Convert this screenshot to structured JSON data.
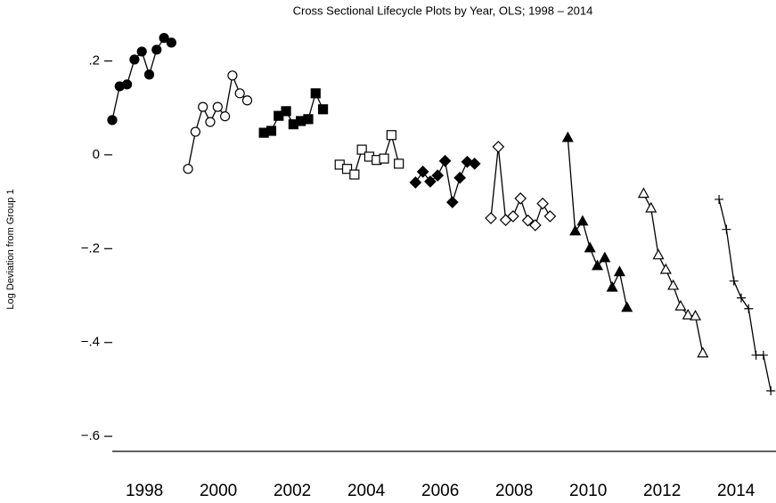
{
  "chart_data": {
    "type": "line",
    "title": "Cross Sectional Lifecycle Plots by Year, OLS; 1998 – 2014",
    "y_label": "Log Deviation from Group 1",
    "xlim": [
      1997.13,
      2015.08
    ],
    "ylim": [
      -0.632,
      0.254
    ],
    "xticks": [
      1998,
      2000,
      2002,
      2004,
      2006,
      2008,
      2010,
      2012,
      2014
    ],
    "yticks": [
      {
        "value": 0.2,
        "label": ".2"
      },
      0,
      {
        "value": -0.2,
        "label": "−.2"
      },
      {
        "value": -0.4,
        "label": "−.4"
      },
      {
        "value": -0.6,
        "label": "−.6"
      }
    ],
    "series": [
      {
        "color": "#000000",
        "marker": "circle",
        "filled": true,
        "x": [
          1997.13,
          1997.33,
          1997.53,
          1997.73,
          1997.93,
          1998.13,
          1998.33,
          1998.53,
          1998.73
        ],
        "values": [
          0.074,
          0.146,
          0.15,
          0.203,
          0.22,
          0.171,
          0.224,
          0.249,
          0.239
        ]
      },
      {
        "color": "#000000",
        "marker": "circle",
        "filled": false,
        "x": [
          1999.18,
          1999.38,
          1999.58,
          1999.78,
          1999.98,
          2000.18,
          2000.38,
          2000.58,
          2000.78
        ],
        "values": [
          -0.03,
          0.049,
          0.102,
          0.07,
          0.102,
          0.082,
          0.169,
          0.131,
          0.116
        ]
      },
      {
        "color": "#000000",
        "marker": "square",
        "filled": true,
        "x": [
          2001.23,
          2001.43,
          2001.63,
          2001.83,
          2002.03,
          2002.23,
          2002.43,
          2002.63,
          2002.83
        ],
        "values": [
          0.047,
          0.051,
          0.083,
          0.093,
          0.065,
          0.072,
          0.076,
          0.131,
          0.097
        ]
      },
      {
        "color": "#000000",
        "marker": "square",
        "filled": false,
        "x": [
          2003.28,
          2003.48,
          2003.68,
          2003.88,
          2004.08,
          2004.28,
          2004.48,
          2004.68,
          2004.88
        ],
        "values": [
          -0.021,
          -0.03,
          -0.042,
          0.011,
          -0.004,
          -0.011,
          -0.008,
          0.042,
          -0.019
        ]
      },
      {
        "color": "#000000",
        "marker": "diamond",
        "filled": true,
        "x": [
          2005.33,
          2005.53,
          2005.73,
          2005.93,
          2006.13,
          2006.33,
          2006.53,
          2006.73,
          2006.93
        ],
        "values": [
          -0.059,
          -0.036,
          -0.057,
          -0.044,
          -0.013,
          -0.101,
          -0.049,
          -0.015,
          -0.019
        ]
      },
      {
        "color": "#000000",
        "marker": "diamond",
        "filled": false,
        "x": [
          2007.37,
          2007.57,
          2007.77,
          2007.97,
          2008.17,
          2008.37,
          2008.57,
          2008.77,
          2008.97
        ],
        "values": [
          -0.135,
          0.017,
          -0.139,
          -0.131,
          -0.093,
          -0.14,
          -0.15,
          -0.104,
          -0.131
        ]
      },
      {
        "color": "#000000",
        "marker": "triangle",
        "filled": true,
        "x": [
          2009.45,
          2009.65,
          2009.85,
          2010.05,
          2010.25,
          2010.45,
          2010.65,
          2010.85,
          2011.05
        ],
        "values": [
          0.036,
          -0.163,
          -0.142,
          -0.199,
          -0.237,
          -0.22,
          -0.283,
          -0.25,
          -0.326
        ]
      },
      {
        "color": "#000000",
        "marker": "triangle",
        "filled": false,
        "x": [
          2011.5,
          2011.7,
          2011.9,
          2012.1,
          2012.3,
          2012.5,
          2012.7,
          2012.9,
          2013.1
        ],
        "values": [
          -0.083,
          -0.114,
          -0.214,
          -0.245,
          -0.279,
          -0.323,
          -0.342,
          -0.344,
          -0.423
        ]
      },
      {
        "color": "#000000",
        "marker": "plus",
        "filled": false,
        "x": [
          2013.54,
          2013.74,
          2013.94,
          2014.14,
          2014.34,
          2014.54,
          2014.74,
          2014.94
        ],
        "values": [
          -0.095,
          -0.159,
          -0.269,
          -0.305,
          -0.328,
          -0.427,
          -0.427,
          -0.503
        ]
      }
    ]
  }
}
